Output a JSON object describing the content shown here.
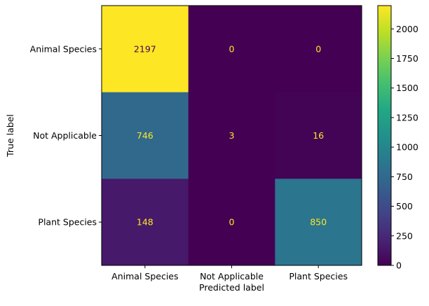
{
  "chart_data": {
    "type": "heatmap",
    "title": "",
    "xlabel": "Predicted label",
    "ylabel": "True label",
    "x_categories": [
      "Animal Species",
      "Not Applicable",
      "Plant Species"
    ],
    "y_categories": [
      "Animal Species",
      "Not Applicable",
      "Plant Species"
    ],
    "values": [
      [
        2197,
        0,
        0
      ],
      [
        746,
        3,
        16
      ],
      [
        148,
        0,
        850
      ]
    ],
    "colormap": "viridis",
    "colorbar": {
      "range": [
        0,
        2197
      ],
      "ticks": [
        0,
        250,
        500,
        750,
        1000,
        1250,
        1500,
        1750,
        2000
      ]
    },
    "text_colors": {
      "on_dark": "#fde725",
      "on_light": "#440154"
    }
  }
}
